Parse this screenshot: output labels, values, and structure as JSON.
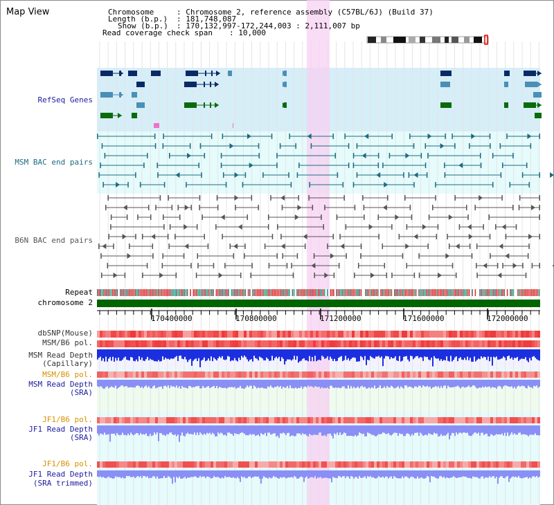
{
  "window": {
    "title": "Map View"
  },
  "header": {
    "chromosome_key": "Chromosome",
    "chromosome_value": ": Chromosome 2, reference assembly (C57BL/6J) (Build 37)",
    "length_key": "Length (b.p.)",
    "length_value": ": 181,748,087",
    "show_key": "Show (b.p.)",
    "show_value": ": 170,132,997-172,244,003 : 2,111,007 bp",
    "coverage_key": "Read coverage check span",
    "coverage_value": ": 10,000"
  },
  "tracks": {
    "refseq": "RefSeq Genes",
    "msm_bac": "MSM BAC end pairs",
    "b6n_bac": "B6N BAC end pairs",
    "repeat": "Repeat",
    "chromosome": "chromosome 2",
    "dbsnp": "dbSNP(Mouse)",
    "msm_pol": "MSM/B6 pol.",
    "msm_depth_cap_1": "MSM Read Depth",
    "msm_depth_cap_2": "(Capillary)",
    "msm_pol_2": "MSM/B6 pol.",
    "msm_depth_sra_1": "MSM Read Depth",
    "msm_depth_sra_2": "(SRA)",
    "jf1_pol": "JF1/B6 pol.",
    "jf1_depth_sra_1": "JF1 Read Depth",
    "jf1_depth_sra_2": "(SRA)",
    "jf1_pol_2": "JF1/B6 pol.",
    "jf1_depth_trim_1": "JF1 Read Depth",
    "jf1_depth_trim_2": "(SRA trimmed)"
  },
  "axis": {
    "ticks": [
      "170400000",
      "170800000",
      "171200000",
      "171600000",
      "172000000"
    ]
  },
  "colors": {
    "refseq_bg": "#d6eef8",
    "msm_bac_bg": "#e6fbfb",
    "highlight": "#f7d0f2",
    "gene_dark": "#0a2a66",
    "gene_mid": "#4a8fb6",
    "gene_green": "#0a6b0a",
    "bac_msm": "#1c6b80",
    "bac_b6n": "#555555",
    "chrom_bar": "#006400",
    "snp_red": "#f05050",
    "depth_blue": "#1c2fe0",
    "depth_light": "#8a8ff5",
    "label_blue": "#1a1aa0",
    "label_teal": "#1c6b80",
    "label_orange": "#d89000"
  }
}
